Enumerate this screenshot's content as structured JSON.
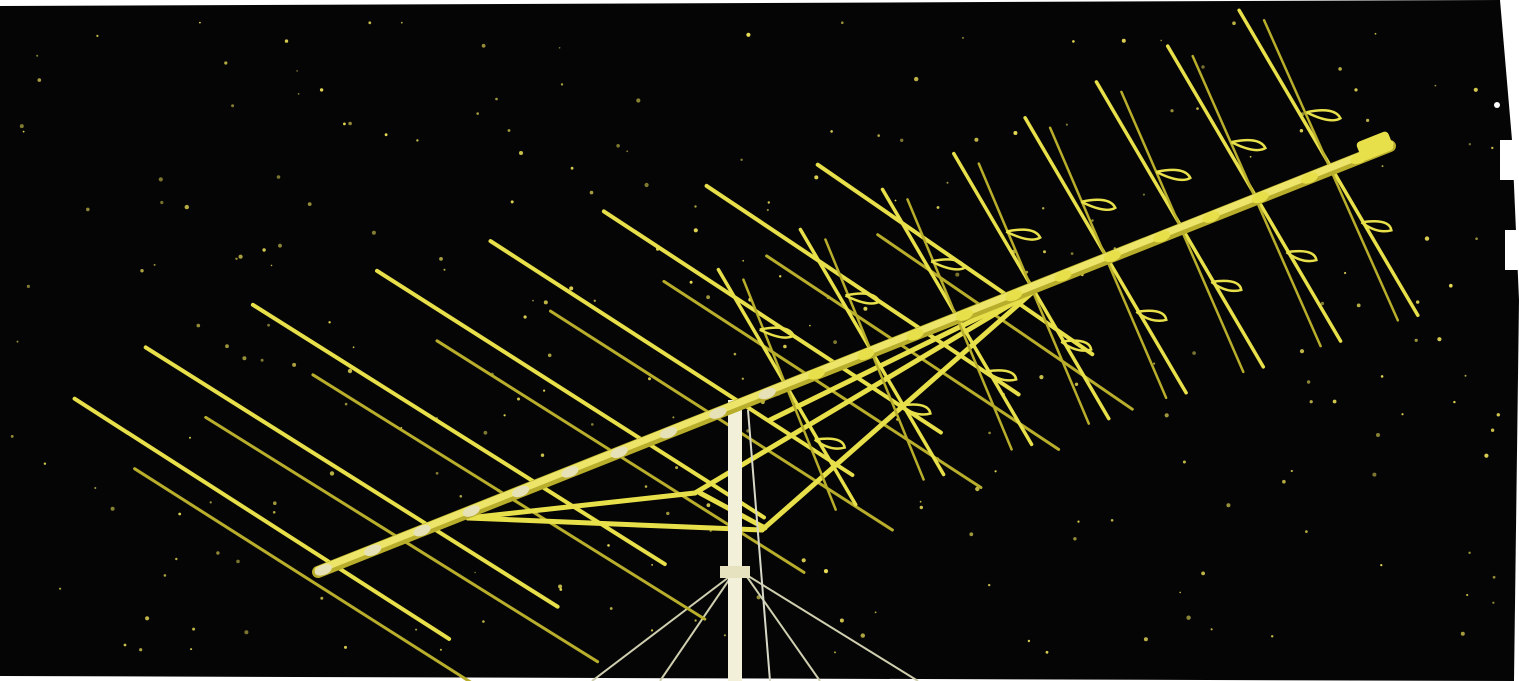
{
  "image": {
    "subject": "tv-antenna",
    "palette": {
      "sky": "#050505",
      "element": "#e8e04a",
      "element_dark": "#b8ae2c",
      "mast": "#f2f0d8",
      "star": "#e6da55",
      "frame": "#ffffff"
    }
  }
}
